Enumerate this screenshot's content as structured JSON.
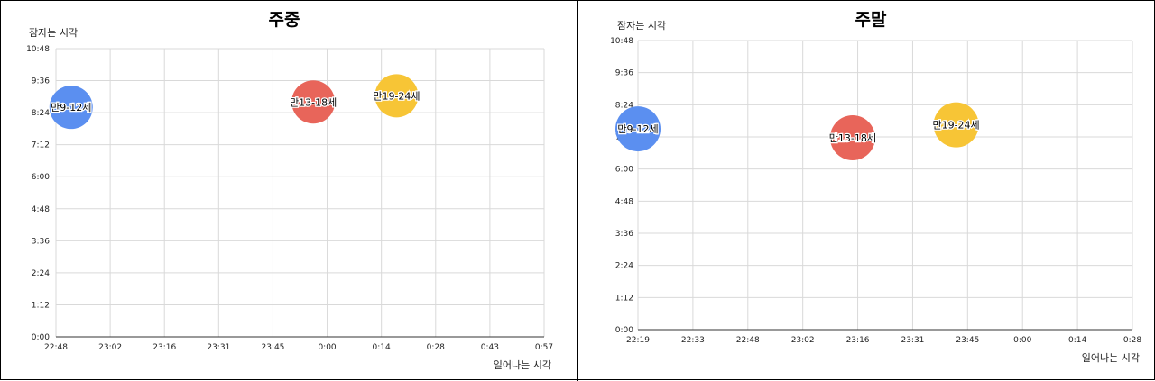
{
  "chart_data": [
    {
      "type": "bubble",
      "title": "주중",
      "ylabel": "잠자는 시각",
      "xlabel": "일어나는 시각",
      "x_ticks": [
        "22:48",
        "23:02",
        "23:16",
        "23:31",
        "23:45",
        "0:00",
        "0:14",
        "0:28",
        "0:43",
        "0:57"
      ],
      "y_ticks": [
        "0:00",
        "1:12",
        "2:24",
        "3:36",
        "4:48",
        "6:00",
        "7:12",
        "8:24",
        "9:36",
        "10:48"
      ],
      "xlim": [
        "22:48",
        "0:57"
      ],
      "ylim": [
        "0:00",
        "10:48"
      ],
      "grid": true,
      "points": [
        {
          "label": "만9-12세",
          "x": "22:52",
          "y": "8:36",
          "color": "#5b8ff0"
        },
        {
          "label": "만13-18세",
          "x": "23:56",
          "y": "8:48",
          "color": "#e8655a"
        },
        {
          "label": "만19-24세",
          "x": "0:18",
          "y": "9:02",
          "color": "#f7c536"
        }
      ]
    },
    {
      "type": "bubble",
      "title": "주말",
      "ylabel": "잠자는 시각",
      "xlabel": "일어나는 시각",
      "x_ticks": [
        "22:19",
        "22:33",
        "22:48",
        "23:02",
        "23:16",
        "23:31",
        "23:45",
        "0:00",
        "0:14",
        "0:28"
      ],
      "y_ticks": [
        "0:00",
        "1:12",
        "2:24",
        "3:36",
        "4:48",
        "6:00",
        "7:12",
        "8:24",
        "9:36",
        "10:48"
      ],
      "xlim": [
        "22:19",
        "0:28"
      ],
      "ylim": [
        "0:00",
        "10:48"
      ],
      "grid": true,
      "points": [
        {
          "label": "만9-12세",
          "x": "22:19",
          "y": "7:30",
          "color": "#5b8ff0"
        },
        {
          "label": "만13-18세",
          "x": "23:15",
          "y": "7:10",
          "color": "#e8655a"
        },
        {
          "label": "만19-24세",
          "x": "23:42",
          "y": "7:39",
          "color": "#f7c536"
        }
      ]
    }
  ]
}
